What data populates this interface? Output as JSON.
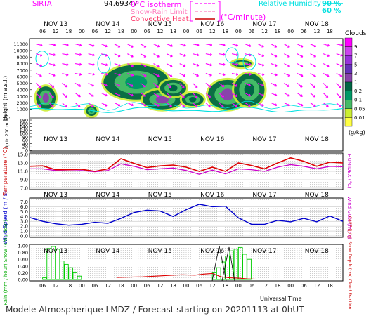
{
  "header": {
    "station": "SIRTA",
    "code": "94.69347",
    "legend_lines": [
      {
        "label": "0°C isotherm",
        "color": "#ff00ff",
        "style": "dashed"
      },
      {
        "label": "Snow-Rain Limit",
        "color": "#ff00ff",
        "style": "dashed"
      },
      {
        "label": "Convective Heat.",
        "color": "#cc0000",
        "style": "solid"
      }
    ],
    "convective_unit": "(°C/minute)",
    "rh_label": "Relative Humidity",
    "rh_values": [
      "90 %",
      "60 %"
    ],
    "rh_color": "#00e0e0"
  },
  "days": [
    "NOV 13",
    "NOV 14",
    "NOV 15",
    "NOV 16",
    "NOV 17",
    "NOV 18"
  ],
  "hour_ticks": [
    "06",
    "12",
    "18",
    "00",
    "06",
    "12",
    "18",
    "00",
    "06",
    "12",
    "18",
    "00",
    "06",
    "12",
    "18",
    "00",
    "06",
    "12",
    "18",
    "00",
    "06",
    "12",
    "18"
  ],
  "clouds_scale": {
    "title": "Clouds",
    "unit": "(g/kg)",
    "levels": [
      "9",
      "7",
      "5",
      "3",
      "1",
      "0.2",
      "0.1",
      "0.05",
      "0.01"
    ],
    "colors": [
      "#ff00ff",
      "#cc44ee",
      "#9933dd",
      "#6633bb",
      "#8844aa",
      "#006644",
      "#009966",
      "#44bb66",
      "#ccee33",
      "#ffff44"
    ]
  },
  "chart_data": [
    {
      "type": "heatmap",
      "title": "",
      "ylabel": "Height (m a.s.l.)",
      "ylabel_low": "Up to 200 m agl.",
      "y_ticks": [
        "11000",
        "10000",
        "9000",
        "8000",
        "7000",
        "6000",
        "5000",
        "4000",
        "3000",
        "2000",
        "1000",
        "180",
        "160",
        "140",
        "120",
        "100",
        "80",
        "60",
        "40",
        "20",
        "0"
      ],
      "cloud_cells": [
        {
          "x": [
            3,
            12
          ],
          "y": [
            1000,
            4500
          ],
          "level": "1"
        },
        {
          "x": [
            26,
            31
          ],
          "y": [
            0,
            1500
          ],
          "level": "0.1"
        },
        {
          "x": [
            34,
            64
          ],
          "y": [
            2500,
            7800
          ],
          "level": "0.1"
        },
        {
          "x": [
            52,
            70
          ],
          "y": [
            1000,
            4000
          ],
          "level": "1"
        },
        {
          "x": [
            60,
            72
          ],
          "y": [
            3000,
            5500
          ],
          "level": "0.2"
        },
        {
          "x": [
            70,
            80
          ],
          "y": [
            1500,
            3500
          ],
          "level": "0.2"
        },
        {
          "x": [
            82,
            100
          ],
          "y": [
            1000,
            5500
          ],
          "level": "1"
        },
        {
          "x": [
            94,
            108
          ],
          "y": [
            1500,
            6500
          ],
          "level": "0.2"
        },
        {
          "x": [
            93,
            102
          ],
          "y": [
            7500,
            8500
          ],
          "level": "0.01"
        }
      ]
    },
    {
      "type": "line",
      "title": "",
      "ylabel": "Temperature (°C)",
      "ylabel_right": "HUMIDEX (°C)",
      "ylim": [
        7,
        15
      ],
      "y_ticks": [
        "15.0",
        "13.0",
        "11.0",
        "9.0",
        "7.0"
      ],
      "x_unit": "hours since NOV 13 00 UT",
      "series": [
        {
          "name": "Temperature",
          "color": "#dd0000",
          "x": [
            0,
            6,
            12,
            18,
            24,
            30,
            36,
            42,
            48,
            54,
            60,
            66,
            72,
            78,
            84,
            90,
            96,
            102,
            108,
            114,
            120,
            126,
            132,
            138,
            144
          ],
          "values": [
            12.2,
            12.3,
            11.4,
            11.4,
            11.5,
            11.0,
            11.6,
            14.0,
            12.9,
            11.9,
            12.3,
            12.5,
            12.0,
            11.0,
            12.0,
            11.0,
            13.0,
            12.4,
            11.6,
            13.0,
            14.2,
            13.4,
            12.2,
            13.2,
            13.0
          ]
        },
        {
          "name": "HUMIDEX",
          "color": "#cc00cc",
          "x": [
            0,
            6,
            12,
            18,
            24,
            30,
            36,
            42,
            48,
            54,
            60,
            66,
            72,
            78,
            84,
            90,
            96,
            102,
            108,
            114,
            120,
            126,
            132,
            138,
            144
          ],
          "values": [
            11.6,
            11.6,
            11.2,
            11.1,
            11.2,
            10.9,
            11.2,
            12.8,
            12.2,
            11.4,
            11.6,
            11.8,
            11.2,
            10.3,
            11.3,
            10.4,
            11.6,
            11.4,
            11.0,
            12.0,
            12.6,
            12.2,
            11.6,
            12.2,
            12.1
          ]
        }
      ]
    },
    {
      "type": "line",
      "title": "",
      "ylabel": "Wind Speed (m / s)",
      "ylabel_right": "Wind Gust (m / s)",
      "ylim": [
        0,
        7.5
      ],
      "y_ticks": [
        "7.0",
        "6.0",
        "5.0",
        "4.0",
        "3.0",
        "2.0",
        "1.0",
        "0.0"
      ],
      "series": [
        {
          "name": "Wind Speed",
          "color": "#0000cc",
          "x": [
            0,
            6,
            12,
            18,
            24,
            30,
            36,
            42,
            48,
            54,
            60,
            66,
            72,
            78,
            84,
            90,
            96,
            102,
            108,
            114,
            120,
            126,
            132,
            138,
            144
          ],
          "values": [
            3.8,
            3.0,
            2.5,
            2.2,
            2.4,
            2.8,
            2.6,
            3.6,
            4.8,
            5.3,
            5.1,
            4.0,
            5.4,
            6.5,
            6.0,
            6.1,
            3.7,
            2.4,
            2.4,
            3.2,
            2.9,
            3.6,
            2.9,
            4.1,
            3.0
          ]
        }
      ]
    },
    {
      "type": "bar",
      "title": "",
      "ylabel": "Rain (mm / hour) Snow (cm / hour)",
      "ylabel_right": "CAPE (J / g) Snow Depth (cm) Cloud Fraction",
      "ylim": [
        0,
        1
      ],
      "y_ticks": [
        "1.00",
        "0.80",
        "0.60",
        "0.40",
        "0.20",
        "0.00"
      ],
      "x_label": "Universal Time",
      "rain_bars": [
        {
          "x": 6,
          "value": 0.05
        },
        {
          "x": 8,
          "value": 0.92
        },
        {
          "x": 10,
          "value": 0.98
        },
        {
          "x": 12,
          "value": 0.9
        },
        {
          "x": 14,
          "value": 0.55
        },
        {
          "x": 16,
          "value": 0.45
        },
        {
          "x": 18,
          "value": 0.35
        },
        {
          "x": 20,
          "value": 0.2
        },
        {
          "x": 22,
          "value": 0.1
        },
        {
          "x": 84,
          "value": 0.2
        },
        {
          "x": 86,
          "value": 0.35
        },
        {
          "x": 88,
          "value": 0.52
        },
        {
          "x": 90,
          "value": 0.7
        },
        {
          "x": 92,
          "value": 0.85
        },
        {
          "x": 94,
          "value": 0.9
        },
        {
          "x": 96,
          "value": 0.95
        },
        {
          "x": 98,
          "value": 0.75
        },
        {
          "x": 100,
          "value": 0.6
        }
      ],
      "cape": {
        "color": "#dd0000",
        "x": [
          40,
          46,
          52,
          58,
          64,
          70,
          76,
          80,
          84,
          88,
          92,
          96,
          100,
          104
        ],
        "values": [
          0.06,
          0.07,
          0.08,
          0.1,
          0.12,
          0.14,
          0.13,
          0.16,
          0.18,
          0.08,
          0.05,
          0.04,
          0.02,
          0.01
        ]
      }
    }
  ],
  "footer": {
    "text": "Modele Atmospherique LMDZ / Forecast starting on 20201113 at 0hUT"
  }
}
